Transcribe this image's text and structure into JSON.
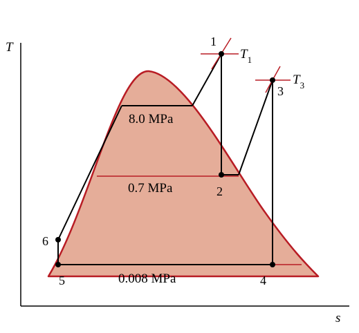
{
  "diagram": {
    "axis": {
      "x_label": "s",
      "y_label": "T"
    },
    "pressures": {
      "high": "8.0 MPa",
      "mid": "0.7 MPa",
      "low": "0.008 MPa"
    },
    "states": {
      "s1": "1",
      "s2": "2",
      "s3": "3",
      "s4": "4",
      "s5": "5",
      "s6": "6"
    },
    "temps": {
      "t1": {
        "main": "T",
        "sub": "1"
      },
      "t3": {
        "main": "T",
        "sub": "3"
      }
    },
    "colors": {
      "dome_fill": "#e5ad99",
      "dome_edge": "#b81c24",
      "line": "#000000"
    }
  }
}
